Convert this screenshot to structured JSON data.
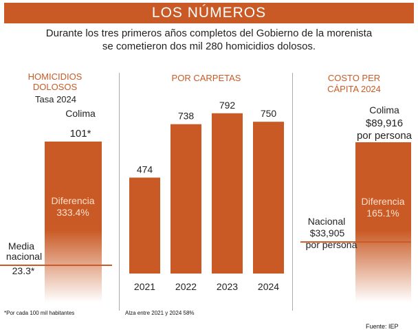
{
  "banner": {
    "title": "LOS NÚMEROS"
  },
  "subtitle": {
    "line1": "Durante los tres primeros años completos del Gobierno de la morenista",
    "line2": "se cometieron dos mil 280 homicidios dolosos."
  },
  "colors": {
    "accent": "#c95a25",
    "bar": "#c95a25",
    "divider": "#aaaaaa"
  },
  "footer": {
    "source": "Fuente: IEP"
  },
  "chart_data": [
    {
      "type": "bar",
      "title": "HOMICIDIOS DOLOSOS",
      "subtitle": "Tasa 2024",
      "bar_label": "Colima",
      "bar_value_label": "101*",
      "values": [
        101
      ],
      "reference_line": {
        "label_line1": "Media",
        "label_line2": "nacional",
        "value_label": "23.3*",
        "value": 23.3
      },
      "inner_label": "Diferencia",
      "inner_value": "333.4%",
      "footnote": "*Por cada 100 mil habitantes"
    },
    {
      "type": "bar",
      "title": "POR CARPETAS",
      "categories": [
        "2021",
        "2022",
        "2023",
        "2024"
      ],
      "values": [
        474,
        738,
        792,
        750
      ],
      "ylim": [
        0,
        900
      ],
      "footnote": "Alza entre 2021 y 2024  58%"
    },
    {
      "type": "bar",
      "title_line1": "COSTO PER",
      "title_line2": "CÁPITA 2024",
      "bar_label": "Colima",
      "bar_value_label": "$89,916",
      "bar_value_unit": "por persona",
      "values": [
        89916
      ],
      "reference_line": {
        "label": "Nacional",
        "value_label": "$33,905",
        "unit": "por persona",
        "value": 33905
      },
      "inner_label": "Diferencia",
      "inner_value": "165.1%"
    }
  ]
}
